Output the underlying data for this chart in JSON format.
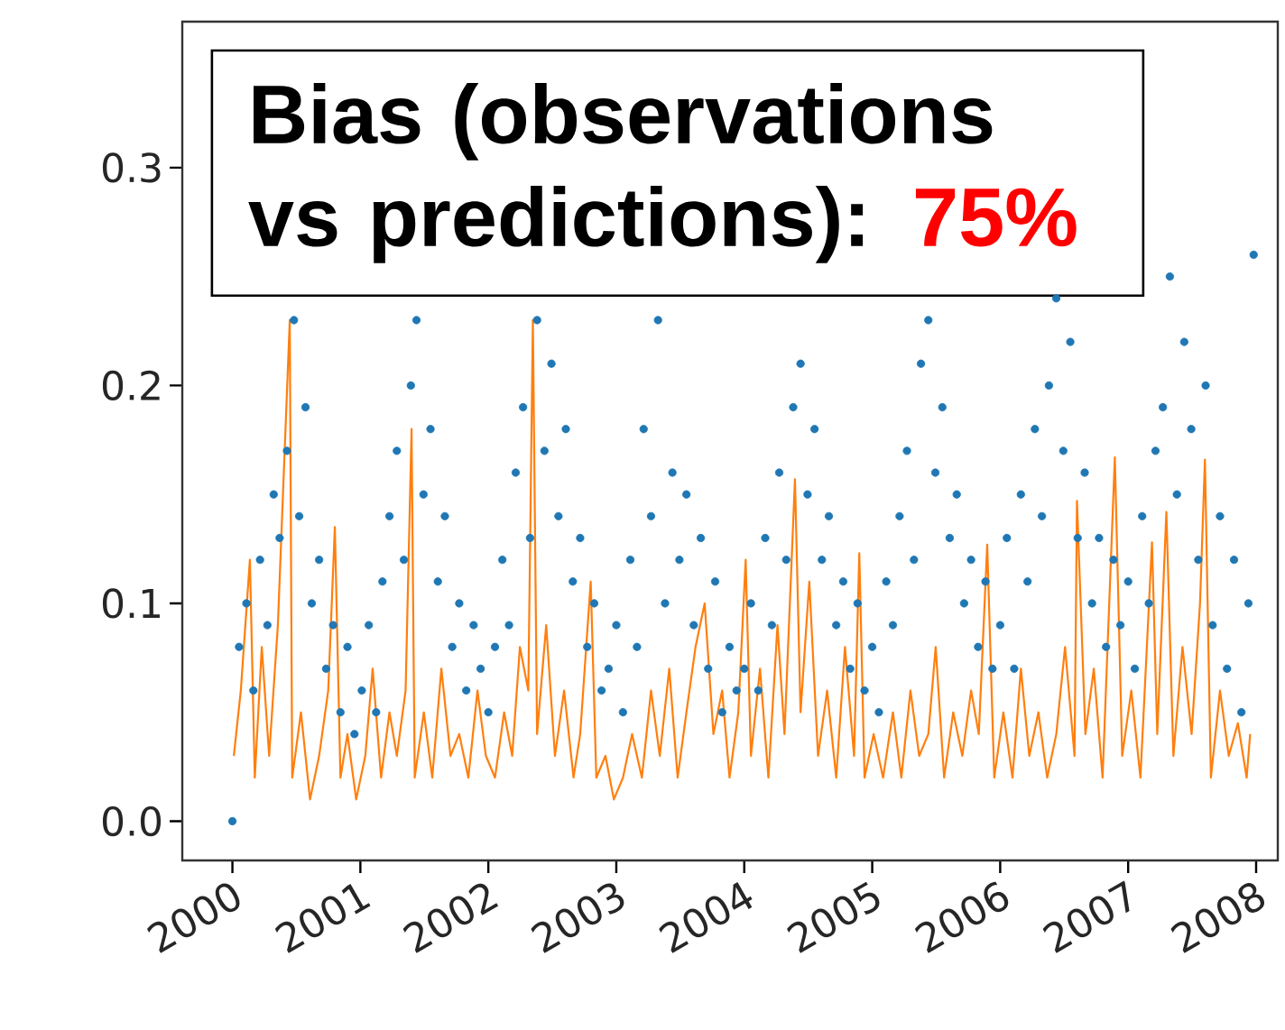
{
  "chart_data": {
    "type": "scatter",
    "annotations": [
      "Bias (observations vs predictions):",
      "75%"
    ],
    "xlim": [
      "1999-08-11",
      "2008-03-03"
    ],
    "ylim": [
      -0.018,
      0.367
    ],
    "xticks": [
      "2000",
      "2001",
      "2002",
      "2003",
      "2004",
      "2005",
      "2006",
      "2007",
      "2008"
    ],
    "yticks": [
      {
        "value": 0,
        "label": "0.0"
      },
      0.1,
      0.2,
      0.3
    ],
    "grid": false,
    "series": [
      {
        "marker": "circle",
        "color": "#1f77b4",
        "x": [
          "2000-01-01",
          "2000-01-20",
          "2000-02-10",
          "2000-03-01",
          "2000-03-20",
          "2000-04-10",
          "2000-04-28",
          "2000-05-15",
          "2000-06-05",
          "2000-06-25",
          "2000-07-10",
          "2000-07-28",
          "2000-08-15",
          "2000-09-05",
          "2000-09-25",
          "2000-10-15",
          "2000-11-05",
          "2000-11-25",
          "2000-12-15",
          "2001-01-05",
          "2001-01-25",
          "2001-02-15",
          "2001-03-05",
          "2001-03-25",
          "2001-04-15",
          "2001-05-05",
          "2001-05-25",
          "2001-06-10",
          "2001-06-30",
          "2001-07-20",
          "2001-08-10",
          "2001-08-30",
          "2001-09-20",
          "2001-10-10",
          "2001-10-30",
          "2001-11-20",
          "2001-12-10",
          "2002-01-01",
          "2002-01-20",
          "2002-02-10",
          "2002-03-01",
          "2002-03-20",
          "2002-04-10",
          "2002-04-30",
          "2002-05-20",
          "2002-06-10",
          "2002-06-30",
          "2002-07-20",
          "2002-08-10",
          "2002-08-30",
          "2002-09-20",
          "2002-10-10",
          "2002-10-30",
          "2002-11-20",
          "2002-12-10",
          "2003-01-01",
          "2003-01-20",
          "2003-02-10",
          "2003-03-01",
          "2003-03-20",
          "2003-04-10",
          "2003-04-30",
          "2003-05-20",
          "2003-06-10",
          "2003-06-30",
          "2003-07-20",
          "2003-08-10",
          "2003-08-30",
          "2003-09-20",
          "2003-10-10",
          "2003-10-30",
          "2003-11-20",
          "2003-12-10",
          "2004-01-01",
          "2004-01-20",
          "2004-02-10",
          "2004-03-01",
          "2004-03-20",
          "2004-04-10",
          "2004-04-30",
          "2004-05-20",
          "2004-06-10",
          "2004-06-30",
          "2004-07-20",
          "2004-08-10",
          "2004-08-30",
          "2004-09-20",
          "2004-10-10",
          "2004-10-30",
          "2004-11-20",
          "2004-12-10",
          "2005-01-01",
          "2005-01-20",
          "2005-02-10",
          "2005-03-01",
          "2005-03-20",
          "2005-04-10",
          "2005-04-30",
          "2005-05-20",
          "2005-06-10",
          "2005-06-30",
          "2005-07-20",
          "2005-08-10",
          "2005-08-30",
          "2005-09-20",
          "2005-10-10",
          "2005-10-30",
          "2005-11-20",
          "2005-12-10",
          "2006-01-01",
          "2006-01-20",
          "2006-02-10",
          "2006-03-01",
          "2006-03-20",
          "2006-04-10",
          "2006-04-30",
          "2006-05-20",
          "2006-06-10",
          "2006-06-30",
          "2006-07-20",
          "2006-08-10",
          "2006-08-30",
          "2006-09-20",
          "2006-10-10",
          "2006-10-30",
          "2006-11-20",
          "2006-12-10",
          "2007-01-01",
          "2007-01-20",
          "2007-02-10",
          "2007-03-01",
          "2007-03-20",
          "2007-04-10",
          "2007-04-30",
          "2007-05-20",
          "2007-06-10",
          "2007-06-30",
          "2007-07-20",
          "2007-08-10",
          "2007-08-30",
          "2007-09-20",
          "2007-10-10",
          "2007-10-30",
          "2007-11-20",
          "2007-12-10",
          "2007-12-25"
        ],
        "values": [
          0.0,
          0.08,
          0.1,
          0.06,
          0.12,
          0.09,
          0.15,
          0.13,
          0.17,
          0.23,
          0.14,
          0.19,
          0.1,
          0.12,
          0.07,
          0.09,
          0.05,
          0.08,
          0.04,
          0.06,
          0.09,
          0.05,
          0.11,
          0.14,
          0.17,
          0.12,
          0.2,
          0.23,
          0.15,
          0.18,
          0.11,
          0.14,
          0.08,
          0.1,
          0.06,
          0.09,
          0.07,
          0.05,
          0.08,
          0.12,
          0.09,
          0.16,
          0.19,
          0.13,
          0.23,
          0.17,
          0.21,
          0.14,
          0.18,
          0.11,
          0.13,
          0.08,
          0.1,
          0.06,
          0.07,
          0.09,
          0.05,
          0.12,
          0.08,
          0.18,
          0.14,
          0.23,
          0.1,
          0.16,
          0.12,
          0.15,
          0.09,
          0.13,
          0.07,
          0.11,
          0.05,
          0.08,
          0.06,
          0.07,
          0.1,
          0.06,
          0.13,
          0.09,
          0.16,
          0.12,
          0.19,
          0.21,
          0.15,
          0.18,
          0.12,
          0.14,
          0.09,
          0.11,
          0.07,
          0.1,
          0.06,
          0.08,
          0.05,
          0.11,
          0.09,
          0.14,
          0.17,
          0.12,
          0.21,
          0.23,
          0.16,
          0.19,
          0.13,
          0.15,
          0.1,
          0.12,
          0.08,
          0.11,
          0.07,
          0.09,
          0.13,
          0.07,
          0.15,
          0.11,
          0.18,
          0.14,
          0.2,
          0.24,
          0.17,
          0.22,
          0.13,
          0.16,
          0.1,
          0.13,
          0.08,
          0.12,
          0.09,
          0.11,
          0.07,
          0.14,
          0.1,
          0.17,
          0.19,
          0.25,
          0.15,
          0.22,
          0.18,
          0.12,
          0.2,
          0.09,
          0.14,
          0.07,
          0.12,
          0.05,
          0.1,
          0.26
        ]
      },
      {
        "type": "line",
        "marker": "none",
        "line_style": "solid",
        "color": "#ff7f0e",
        "x": [
          "2000-01-05",
          "2000-01-25",
          "2000-02-20",
          "2000-03-05",
          "2000-03-25",
          "2000-04-15",
          "2000-05-10",
          "2000-06-13",
          "2000-06-20",
          "2000-07-15",
          "2000-08-10",
          "2000-09-05",
          "2000-10-01",
          "2000-10-20",
          "2000-11-05",
          "2000-11-25",
          "2000-12-20",
          "2001-01-15",
          "2001-02-05",
          "2001-03-01",
          "2001-03-25",
          "2001-04-15",
          "2001-05-10",
          "2001-05-27",
          "2001-06-05",
          "2001-07-01",
          "2001-07-25",
          "2001-08-20",
          "2001-09-15",
          "2001-10-10",
          "2001-11-05",
          "2001-12-01",
          "2001-12-25",
          "2002-01-20",
          "2002-02-15",
          "2002-03-10",
          "2002-04-01",
          "2002-04-25",
          "2002-05-08",
          "2002-05-20",
          "2002-06-15",
          "2002-07-10",
          "2002-08-05",
          "2002-09-01",
          "2002-09-20",
          "2002-10-20",
          "2002-11-05",
          "2002-12-01",
          "2002-12-25",
          "2003-01-20",
          "2003-02-15",
          "2003-03-15",
          "2003-04-10",
          "2003-05-05",
          "2003-06-01",
          "2003-06-25",
          "2003-07-20",
          "2003-08-15",
          "2003-09-10",
          "2003-10-05",
          "2003-10-30",
          "2003-11-20",
          "2003-12-15",
          "2004-01-05",
          "2004-01-20",
          "2004-02-15",
          "2004-03-10",
          "2004-04-05",
          "2004-04-25",
          "2004-05-25",
          "2004-06-10",
          "2004-07-05",
          "2004-07-30",
          "2004-08-25",
          "2004-09-20",
          "2004-10-15",
          "2004-11-10",
          "2004-11-25",
          "2004-12-10",
          "2005-01-05",
          "2005-02-01",
          "2005-03-01",
          "2005-03-25",
          "2005-04-20",
          "2005-05-15",
          "2005-06-10",
          "2005-07-01",
          "2005-07-25",
          "2005-08-20",
          "2005-09-15",
          "2005-10-10",
          "2005-11-01",
          "2005-11-25",
          "2005-12-15",
          "2006-01-10",
          "2006-02-05",
          "2006-03-01",
          "2006-03-25",
          "2006-04-20",
          "2006-05-15",
          "2006-06-10",
          "2006-07-05",
          "2006-08-01",
          "2006-08-08",
          "2006-09-01",
          "2006-09-25",
          "2006-10-20",
          "2006-11-24",
          "2006-12-15",
          "2007-01-10",
          "2007-02-05",
          "2007-03-10",
          "2007-03-25",
          "2007-04-20",
          "2007-05-10",
          "2007-06-05",
          "2007-07-01",
          "2007-07-25",
          "2007-08-08",
          "2007-08-25",
          "2007-09-20",
          "2007-10-15",
          "2007-11-10",
          "2007-12-05",
          "2007-12-15"
        ],
        "values": [
          0.03,
          0.06,
          0.12,
          0.02,
          0.08,
          0.03,
          0.09,
          0.23,
          0.02,
          0.05,
          0.01,
          0.03,
          0.06,
          0.135,
          0.02,
          0.04,
          0.01,
          0.03,
          0.07,
          0.02,
          0.05,
          0.03,
          0.06,
          0.18,
          0.02,
          0.05,
          0.02,
          0.07,
          0.03,
          0.04,
          0.02,
          0.06,
          0.03,
          0.02,
          0.05,
          0.03,
          0.08,
          0.06,
          0.23,
          0.04,
          0.09,
          0.03,
          0.06,
          0.02,
          0.04,
          0.11,
          0.02,
          0.03,
          0.01,
          0.02,
          0.04,
          0.02,
          0.06,
          0.03,
          0.07,
          0.02,
          0.05,
          0.08,
          0.1,
          0.04,
          0.06,
          0.02,
          0.05,
          0.12,
          0.03,
          0.07,
          0.02,
          0.09,
          0.04,
          0.157,
          0.05,
          0.11,
          0.03,
          0.06,
          0.02,
          0.08,
          0.03,
          0.123,
          0.02,
          0.04,
          0.02,
          0.05,
          0.02,
          0.06,
          0.03,
          0.04,
          0.08,
          0.02,
          0.05,
          0.03,
          0.06,
          0.04,
          0.127,
          0.02,
          0.05,
          0.02,
          0.07,
          0.03,
          0.05,
          0.02,
          0.04,
          0.08,
          0.03,
          0.147,
          0.04,
          0.07,
          0.02,
          0.167,
          0.03,
          0.06,
          0.02,
          0.128,
          0.04,
          0.142,
          0.03,
          0.08,
          0.04,
          0.1,
          0.166,
          0.02,
          0.06,
          0.03,
          0.045,
          0.02,
          0.04
        ]
      }
    ]
  }
}
